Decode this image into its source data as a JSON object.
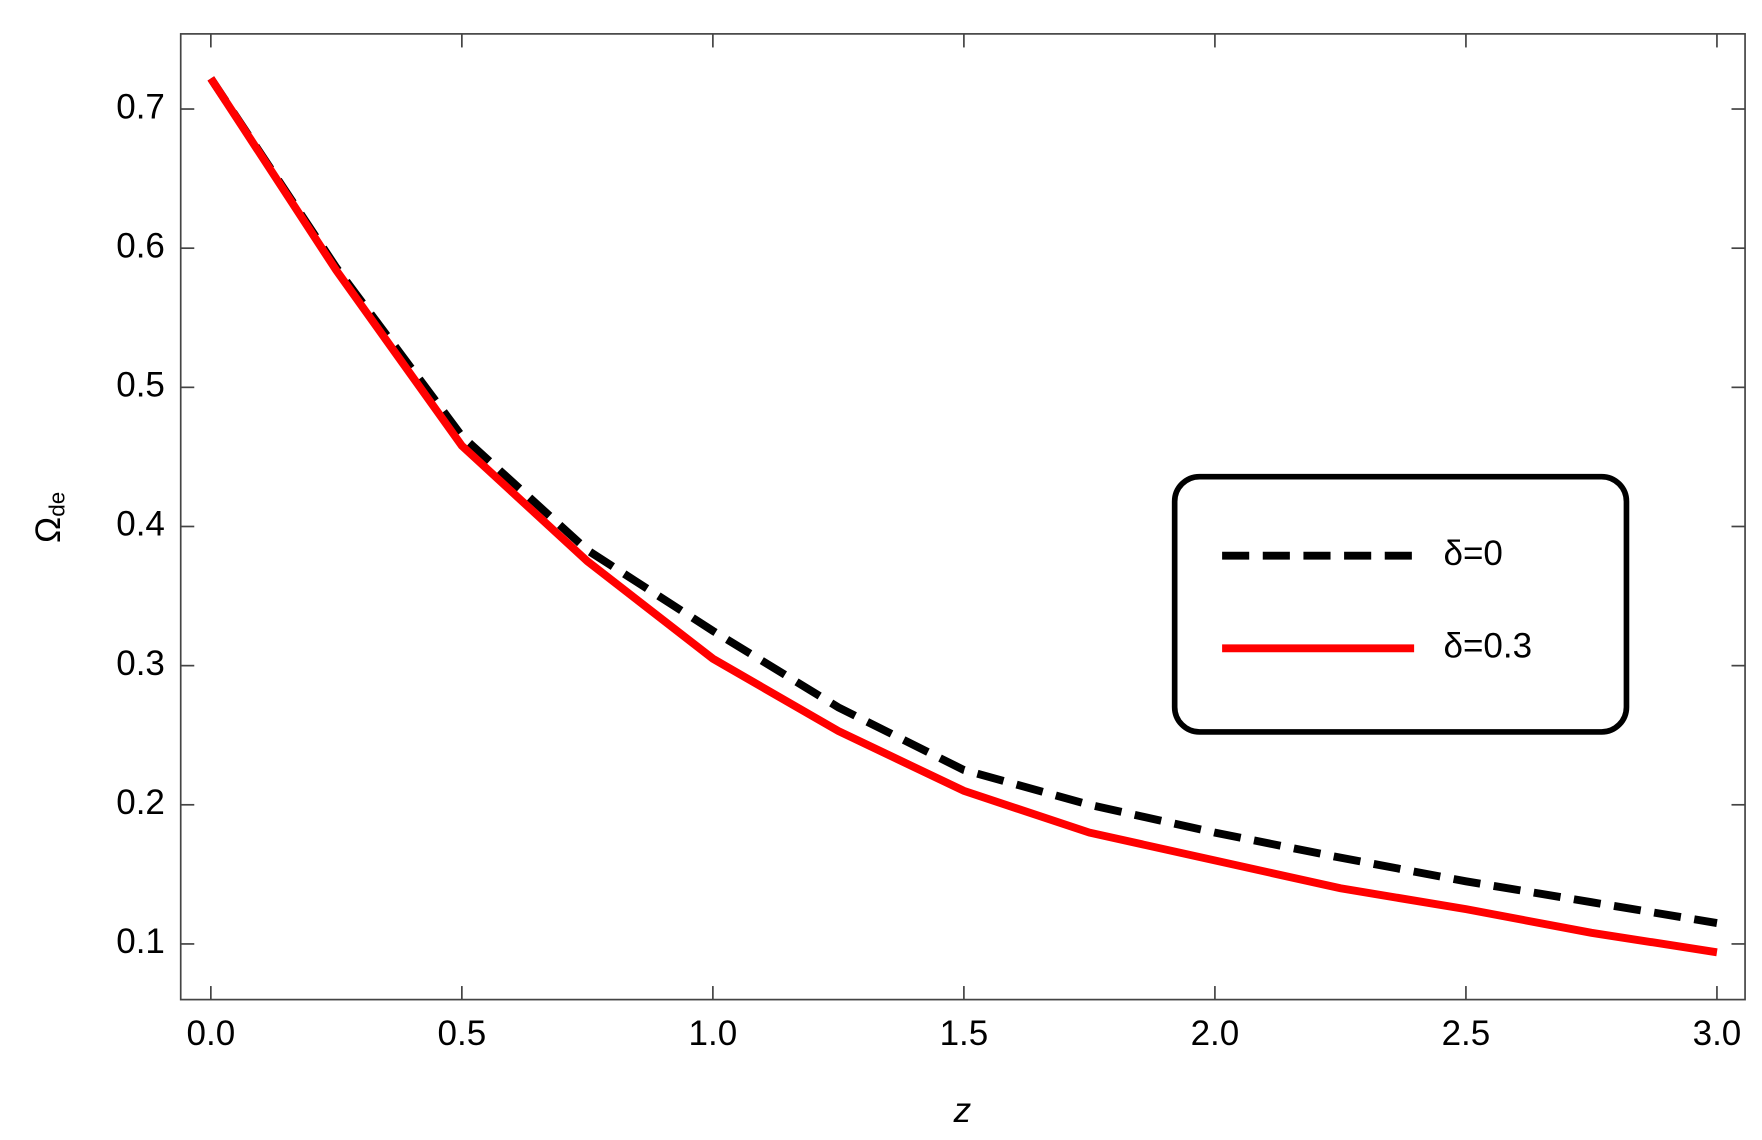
{
  "chart_data": {
    "type": "line",
    "x_label": "z",
    "y_label": "Ω",
    "y_label_subscript": "de",
    "x": [
      0,
      0.25,
      0.5,
      0.75,
      1.0,
      1.25,
      1.5,
      1.75,
      2.0,
      2.25,
      2.5,
      2.75,
      3.0
    ],
    "series": [
      {
        "name": "δ=0",
        "color": "#000000",
        "dash": true,
        "values": [
          0.722,
          0.586,
          0.465,
          0.383,
          0.325,
          0.27,
          0.225,
          0.2,
          0.18,
          0.162,
          0.145,
          0.13,
          0.115
        ]
      },
      {
        "name": "δ=0.3",
        "color": "#ff0000",
        "dash": false,
        "values": [
          0.722,
          0.584,
          0.458,
          0.375,
          0.305,
          0.253,
          0.21,
          0.18,
          0.16,
          0.14,
          0.125,
          0.108,
          0.094
        ]
      }
    ],
    "xlim": [
      -0.06,
      3.056
    ],
    "ylim": [
      0.06,
      0.754
    ],
    "xticks": [
      {
        "value": 0,
        "label": "0.0"
      },
      0.5,
      {
        "value": 1,
        "label": "1.0"
      },
      1.5,
      {
        "value": 2,
        "label": "2.0"
      },
      2.5,
      {
        "value": 3,
        "label": "3.0"
      }
    ],
    "yticks": [
      0.1,
      0.2,
      0.3,
      0.4,
      0.5,
      0.6,
      0.7
    ],
    "legend": "right"
  }
}
